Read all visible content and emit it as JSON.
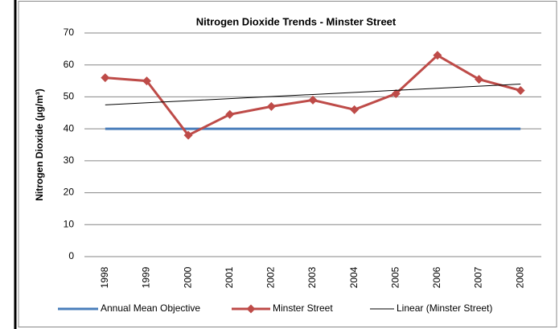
{
  "chart_data": {
    "type": "line",
    "title": "Nitrogen Dioxide Trends - Minster Street",
    "y_label": "Nitrogen Dioxide (µg/m³)",
    "categories": [
      "1998",
      "1999",
      "2000",
      "2001",
      "2002",
      "2003",
      "2004",
      "2005",
      "2006",
      "2007",
      "2008"
    ],
    "series": [
      {
        "name": "Annual Mean Objective",
        "color": "#4a7ebb",
        "values": [
          40,
          40,
          40,
          40,
          40,
          40,
          40,
          40,
          40,
          40,
          40
        ]
      },
      {
        "name": "Minster Street",
        "color": "#be4b48",
        "marker": "diamond",
        "values": [
          56,
          55,
          38,
          44.5,
          47,
          49,
          46,
          51,
          63,
          55.5,
          52
        ]
      },
      {
        "name": "Linear (Minster Street)",
        "color": "#000000",
        "values": [
          47.5,
          48.15,
          48.8,
          49.45,
          50.1,
          50.75,
          51.4,
          52.05,
          52.7,
          53.35,
          54.0
        ]
      }
    ],
    "ylim": [
      0,
      70
    ],
    "yticks": [
      0,
      10,
      20,
      30,
      40,
      50,
      60,
      70
    ],
    "grid": true,
    "legend": "bottom"
  }
}
